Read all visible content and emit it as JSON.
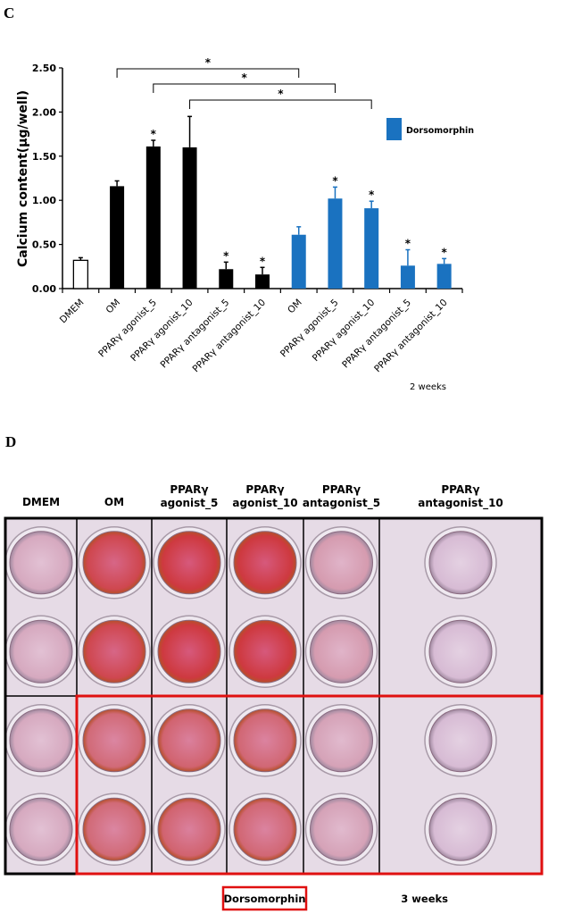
{
  "panel_c_label": "C",
  "panel_d_label": "D",
  "chart_data": {
    "type": "bar",
    "title": "",
    "xlabel": "",
    "ylabel": "Calcium content(μg/well)",
    "ylim": [
      0,
      2.5
    ],
    "yticks": [
      "0.00",
      "0.50",
      "1.00",
      "1.50",
      "2.00",
      "2.50"
    ],
    "categories": [
      "DMEM",
      "OM",
      "PPARγ agonist_5",
      "PPARγ agonist_10",
      "PPARγ antagonist_5",
      "PPARγ antagonist_10",
      "OM",
      "PPARγ agonist_5",
      "PPARγ agonist_10",
      "PPARγ antagonist_5",
      "PPARγ antagonist_10"
    ],
    "values": [
      0.32,
      1.16,
      1.61,
      1.6,
      0.22,
      0.16,
      0.61,
      1.02,
      0.91,
      0.26,
      0.28
    ],
    "error_upper": [
      0.35,
      1.22,
      1.68,
      1.95,
      0.3,
      0.24,
      0.7,
      1.15,
      0.99,
      0.44,
      0.34
    ],
    "significant": [
      false,
      false,
      true,
      false,
      true,
      true,
      false,
      true,
      true,
      true,
      true
    ],
    "bar_groups": [
      "control",
      "black",
      "black",
      "black",
      "black",
      "black",
      "dorsomorphin",
      "dorsomorphin",
      "dorsomorphin",
      "dorsomorphin",
      "dorsomorphin"
    ],
    "colors": {
      "control": "#ffffff",
      "black": "#000000",
      "dorsomorphin": "#1a72c0"
    },
    "legend": {
      "entries": [
        "Dorsomorphin"
      ],
      "placement": "top-right"
    },
    "comparisons": [
      {
        "from": 1,
        "to": 6,
        "label": "*"
      },
      {
        "from": 2,
        "to": 7,
        "label": "*"
      },
      {
        "from": 3,
        "to": 8,
        "label": "*"
      }
    ],
    "significance_mark": "*",
    "grid": false,
    "note": "2 weeks"
  },
  "plate": {
    "columns": [
      "DMEM",
      "OM",
      "PPARγ\nagonist_5",
      "PPARγ\nagonist_10",
      "PPARγ\nantagonist_5",
      "PPARγ\nantagonist_10"
    ],
    "stain_intensity_top": [
      0.15,
      0.85,
      0.95,
      0.95,
      0.25,
      0.02
    ],
    "stain_intensity_bottom": [
      0.15,
      0.6,
      0.65,
      0.62,
      0.2,
      0.02
    ],
    "highlight_label": "Dorsomorphin",
    "highlight_color": "#e01010",
    "duration": "3 weeks"
  }
}
